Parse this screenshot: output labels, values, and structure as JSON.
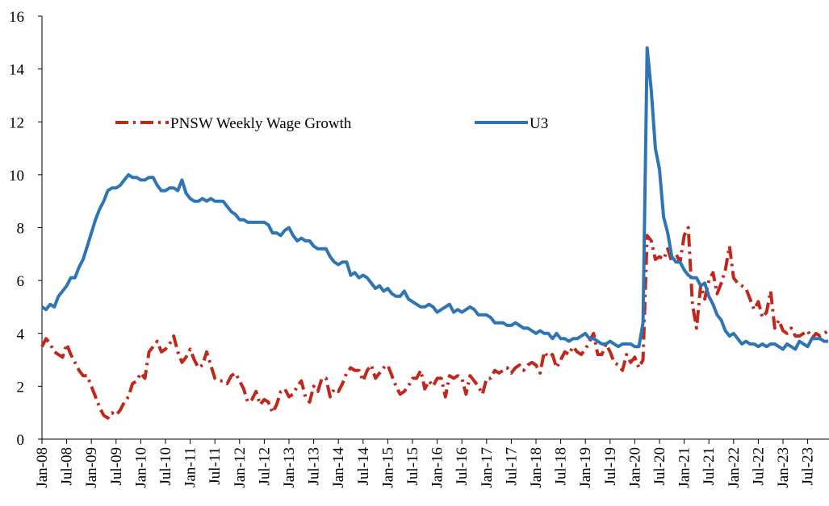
{
  "chart_data": {
    "type": "line",
    "categories": [
      "Jan-08",
      null,
      null,
      null,
      null,
      null,
      "Jul-08",
      null,
      null,
      null,
      null,
      null,
      "Jan-09",
      null,
      null,
      null,
      null,
      null,
      "Jul-09",
      null,
      null,
      null,
      null,
      null,
      "Jan-10",
      null,
      null,
      null,
      null,
      null,
      "Jul-10",
      null,
      null,
      null,
      null,
      null,
      "Jan-11",
      null,
      null,
      null,
      null,
      null,
      "Jul-11",
      null,
      null,
      null,
      null,
      null,
      "Jan-12",
      null,
      null,
      null,
      null,
      null,
      "Jul-12",
      null,
      null,
      null,
      null,
      null,
      "Jan-13",
      null,
      null,
      null,
      null,
      null,
      "Jul-13",
      null,
      null,
      null,
      null,
      null,
      "Jan-14",
      null,
      null,
      null,
      null,
      null,
      "Jul-14",
      null,
      null,
      null,
      null,
      null,
      "Jan-15",
      null,
      null,
      null,
      null,
      null,
      "Jul-15",
      null,
      null,
      null,
      null,
      null,
      "Jan-16",
      null,
      null,
      null,
      null,
      null,
      "Jul-16",
      null,
      null,
      null,
      null,
      null,
      "Jan-17",
      null,
      null,
      null,
      null,
      null,
      "Jul-17",
      null,
      null,
      null,
      null,
      null,
      "Jan-18",
      null,
      null,
      null,
      null,
      null,
      "Jul-18",
      null,
      null,
      null,
      null,
      null,
      "Jan-19",
      null,
      null,
      null,
      null,
      null,
      "Jul-19",
      null,
      null,
      null,
      null,
      null,
      "Jan-20",
      null,
      null,
      null,
      null,
      null,
      "Jul-20",
      null,
      null,
      null,
      null,
      null,
      "Jan-21",
      null,
      null,
      null,
      null,
      null,
      "Jul-21",
      null,
      null,
      null,
      null,
      null,
      "Jan-22",
      null,
      null,
      null,
      null,
      null,
      "Jul-22",
      null,
      null,
      null,
      null,
      null,
      "Jan-23",
      null,
      null,
      null,
      null,
      null,
      "Jul-23",
      null,
      null,
      null,
      null,
      null
    ],
    "series": [
      {
        "name": "PNSW Weekly Wage Growth",
        "color": "#c0281c",
        "linestyle": "dash-dot",
        "values": [
          3.5,
          3.8,
          3.6,
          3.3,
          3.2,
          3.1,
          3.6,
          3.2,
          2.9,
          2.6,
          2.4,
          2.4,
          2.0,
          1.6,
          1.2,
          0.9,
          0.8,
          1.0,
          0.9,
          1.1,
          1.4,
          1.6,
          2.1,
          2.2,
          2.5,
          2.3,
          3.3,
          3.5,
          3.7,
          3.3,
          3.4,
          3.6,
          3.9,
          3.3,
          2.9,
          3.1,
          3.4,
          3.0,
          2.7,
          2.8,
          3.3,
          2.8,
          2.3,
          2.2,
          2.2,
          2.1,
          2.4,
          2.5,
          2.2,
          1.9,
          1.4,
          1.5,
          1.8,
          1.3,
          1.5,
          1.4,
          1.0,
          1.3,
          1.8,
          1.9,
          1.6,
          1.7,
          2.0,
          2.2,
          1.6,
          1.4,
          2.0,
          1.8,
          2.3,
          2.3,
          1.6,
          1.9,
          1.8,
          2.1,
          2.5,
          2.7,
          2.6,
          2.6,
          2.2,
          2.6,
          2.8,
          2.3,
          2.5,
          2.7,
          2.8,
          2.4,
          2.0,
          1.7,
          1.8,
          2.0,
          2.3,
          2.3,
          2.6,
          1.9,
          2.2,
          2.0,
          2.3,
          2.3,
          1.6,
          2.4,
          2.3,
          2.4,
          2.3,
          1.7,
          2.4,
          2.2,
          2.0,
          1.7,
          2.3,
          2.3,
          2.6,
          2.5,
          2.6,
          2.7,
          2.5,
          2.7,
          2.8,
          2.6,
          2.8,
          2.9,
          2.8,
          2.5,
          3.3,
          3.1,
          3.2,
          2.7,
          3.0,
          3.3,
          3.2,
          3.5,
          3.3,
          3.2,
          3.4,
          3.7,
          4.0,
          3.2,
          3.2,
          3.6,
          3.3,
          2.9,
          2.8,
          2.6,
          3.2,
          2.9,
          3.1,
          2.7,
          3.0,
          7.7,
          7.5,
          6.8,
          6.9,
          6.8,
          7.2,
          6.7,
          7.0,
          6.7,
          7.7,
          8.0,
          5.1,
          4.2,
          5.8,
          5.3,
          6.0,
          6.3,
          5.5,
          5.9,
          6.4,
          7.3,
          6.1,
          5.9,
          5.8,
          5.7,
          5.3,
          4.9,
          5.2,
          4.6,
          4.8,
          5.6,
          4.2,
          4.5,
          4.1,
          4.0,
          4.2,
          3.9,
          3.9,
          4.0,
          4.1,
          3.8,
          4.0,
          3.9,
          4.0,
          4.1
        ]
      },
      {
        "name": "U3",
        "color": "#2e75b6",
        "linestyle": "solid",
        "values": [
          5.0,
          4.9,
          5.1,
          5.0,
          5.4,
          5.6,
          5.8,
          6.1,
          6.1,
          6.5,
          6.8,
          7.3,
          7.8,
          8.3,
          8.7,
          9.0,
          9.4,
          9.5,
          9.5,
          9.6,
          9.8,
          10.0,
          9.9,
          9.9,
          9.8,
          9.8,
          9.9,
          9.9,
          9.6,
          9.4,
          9.4,
          9.5,
          9.5,
          9.4,
          9.8,
          9.3,
          9.1,
          9.0,
          9.0,
          9.1,
          9.0,
          9.1,
          9.0,
          9.0,
          9.0,
          8.8,
          8.6,
          8.5,
          8.3,
          8.3,
          8.2,
          8.2,
          8.2,
          8.2,
          8.2,
          8.1,
          7.8,
          7.8,
          7.7,
          7.9,
          8.0,
          7.7,
          7.5,
          7.6,
          7.5,
          7.5,
          7.3,
          7.2,
          7.2,
          7.2,
          6.9,
          6.7,
          6.6,
          6.7,
          6.7,
          6.2,
          6.3,
          6.1,
          6.2,
          6.1,
          5.9,
          5.7,
          5.8,
          5.6,
          5.7,
          5.5,
          5.4,
          5.4,
          5.6,
          5.3,
          5.2,
          5.1,
          5.0,
          5.0,
          5.1,
          5.0,
          4.8,
          4.9,
          5.0,
          5.1,
          4.8,
          4.9,
          4.8,
          4.9,
          5.0,
          4.9,
          4.7,
          4.7,
          4.7,
          4.6,
          4.4,
          4.4,
          4.4,
          4.3,
          4.3,
          4.4,
          4.3,
          4.2,
          4.2,
          4.1,
          4.0,
          4.1,
          4.0,
          4.0,
          3.8,
          4.0,
          3.8,
          3.8,
          3.7,
          3.8,
          3.8,
          3.9,
          4.0,
          3.8,
          3.8,
          3.7,
          3.6,
          3.6,
          3.7,
          3.6,
          3.5,
          3.6,
          3.6,
          3.6,
          3.5,
          3.5,
          4.4,
          14.8,
          13.2,
          11.0,
          10.2,
          8.4,
          7.8,
          6.9,
          6.7,
          6.7,
          6.4,
          6.2,
          6.1,
          6.1,
          5.8,
          5.9,
          5.4,
          5.1,
          4.7,
          4.5,
          4.1,
          3.9,
          4.0,
          3.8,
          3.6,
          3.7,
          3.6,
          3.6,
          3.5,
          3.6,
          3.5,
          3.6,
          3.6,
          3.5,
          3.4,
          3.6,
          3.5,
          3.4,
          3.7,
          3.6,
          3.5,
          3.8,
          3.8,
          3.8,
          3.7,
          3.7
        ]
      }
    ],
    "ylim": [
      0,
      16
    ],
    "yticks": [
      0,
      2,
      4,
      6,
      8,
      10,
      12,
      14,
      16
    ],
    "grid": false,
    "legend": "upper left"
  }
}
